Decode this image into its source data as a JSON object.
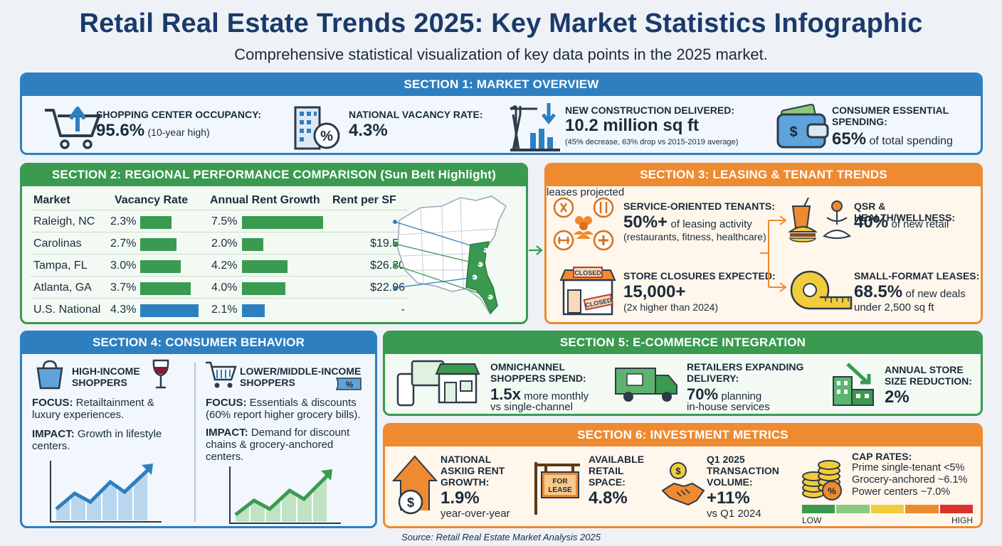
{
  "title": "Retail Real Estate Trends 2025: Key Market Statistics Infographic",
  "subtitle": "Comprehensive statistical visualization of key data points in the 2025 market.",
  "source": "Source: Retail Real Estate Market Analysis 2025",
  "colors": {
    "navy": "#1a3a6b",
    "blue": "#2e7fc0",
    "green": "#3a9a4f",
    "orange": "#ee8a2f"
  },
  "s1": {
    "header": "SECTION 1: MARKET OVERVIEW",
    "occupancy": {
      "label": "SHOPPING CENTER OCCUPANCY:",
      "value": "95.6%",
      "note": "(10-year high)",
      "icon": "cart-up-icon"
    },
    "vacancy": {
      "label": "NATIONAL VACANCY RATE:",
      "value": "4.3%",
      "icon": "building-percent-icon"
    },
    "construction": {
      "label": "NEW CONSTRUCTION DELIVERED:",
      "value": "10.2 million sq ft",
      "note": "(45% decrease, 63% drop vs 2015-2019 average)",
      "icon": "crane-down-icon"
    },
    "spending": {
      "label1": "CONSUMER ESSENTIAL",
      "label2": "SPENDING:",
      "value": "65%",
      "note": "of total spending",
      "icon": "wallet-icon"
    }
  },
  "s2": {
    "header": "SECTION 2: REGIONAL PERFORMANCE COMPARISON (Sun Belt Highlight)",
    "columns": [
      "Market",
      "Vacancy Rate",
      "Annual Rent Growth",
      "Rent per SF"
    ],
    "rows": [
      {
        "market": "Raleigh, NC",
        "vacancy": "2.3%",
        "growth": "7.5%",
        "rent": "-"
      },
      {
        "market": "Carolinas",
        "vacancy": "2.7%",
        "growth": "2.0%",
        "rent": "$19.52"
      },
      {
        "market": "Tampa, FL",
        "vacancy": "3.0%",
        "growth": "4.2%",
        "rent": "$26.30"
      },
      {
        "market": "Atlanta, GA",
        "vacancy": "3.7%",
        "growth": "4.0%",
        "rent": "$22.96"
      },
      {
        "market": "U.S. National",
        "vacancy": "4.3%",
        "growth": "2.1%",
        "rent": "-"
      }
    ]
  },
  "chart_data": {
    "type": "table",
    "columns": [
      "Market",
      "Vacancy Rate",
      "Annual Rent Growth",
      "Rent per SF"
    ],
    "categories": [
      "Raleigh, NC",
      "Carolinas",
      "Tampa, FL",
      "Atlanta, GA",
      "U.S. National"
    ],
    "series": [
      {
        "name": "Vacancy Rate",
        "values": [
          2.3,
          2.7,
          3.0,
          3.7,
          4.3
        ]
      },
      {
        "name": "Annual Rent Growth",
        "values": [
          7.5,
          2.0,
          4.2,
          4.0,
          2.1
        ]
      },
      {
        "name": "Rent per SF",
        "values": [
          null,
          19.52,
          26.3,
          22.96,
          null
        ]
      }
    ]
  },
  "s3": {
    "header": "SECTION 3: LEASING & TENANT TRENDS",
    "service": {
      "label": "SERVICE-ORIENTED TENANTS:",
      "value": "50%+",
      "note1": "of leasing activity",
      "note2": "(restaurants, fitness, healthcare)"
    },
    "closures": {
      "label": "STORE CLOSURES EXPECTED:",
      "value": "15,000+",
      "note": "(2x higher than 2024)",
      "sign1": "CLOSED",
      "sign2": "CLOSED"
    },
    "qsr": {
      "label": "QSR & HEALTH/WELLNESS:",
      "value": "40%",
      "note1": "of new retail",
      "note2": "leases projected"
    },
    "small": {
      "label": "SMALL-FORMAT LEASES:",
      "value": "68.5%",
      "note1": "of new deals",
      "note2": "under 2,500 sq ft"
    }
  },
  "s4": {
    "header": "SECTION 4: CONSUMER BEHAVIOR",
    "high": {
      "title1": "HIGH-INCOME",
      "title2": "SHOPPERS",
      "focus_k": "FOCUS:",
      "focus_v": "Retailtainment & luxury experiences.",
      "impact_k": "IMPACT:",
      "impact_v": "Growth in lifestyle centers."
    },
    "low": {
      "title1": "LOWER/MIDDLE-INCOME",
      "title2": "SHOPPERS",
      "focus_k": "FOCUS:",
      "focus_v": "Essentials & discounts (60% report higher grocery bills).",
      "impact_k": "IMPACT:",
      "impact_v": "Demand for discount chains & grocery-anchored centers.",
      "tag": "%"
    }
  },
  "s5": {
    "header": "SECTION 5: E-COMMERCE INTEGRATION",
    "omni": {
      "label1": "OMNICHANNEL",
      "label2": "SHOPPERS SPEND:",
      "value": "1.5x",
      "note1": "more monthly",
      "note2": "vs single-channel"
    },
    "delivery": {
      "label1": "RETAILERS EXPANDING",
      "label2": "DELIVERY:",
      "value": "70%",
      "note1": "planning",
      "note2": "in-house services"
    },
    "size": {
      "label1": "ANNUAL STORE",
      "label2": "SIZE REDUCTION:",
      "value": "2%"
    }
  },
  "s6": {
    "header": "SECTION 6: INVESTMENT METRICS",
    "rent": {
      "label1": "NATIONAL",
      "label2": "ASKIIG RENT",
      "label3": "GROWTH:",
      "value": "1.9%",
      "note": "year-over-year"
    },
    "space": {
      "label1": "AVAILABLE",
      "label2": "RETAIL",
      "label3": "SPACE:",
      "value": "4.8%",
      "sign1": "FOR",
      "sign2": "LEASE"
    },
    "volume": {
      "label1": "Q1 2025",
      "label2": "TRANSACTION",
      "label3": "VOLUME:",
      "value": "+11%",
      "note": "vs Q1 2024"
    },
    "cap": {
      "label": "CAP RATES:",
      "lines": [
        "Prime single-tenant <5%",
        "Grocery-anchored ~6.1%",
        "Power centers ~7.0%"
      ],
      "low": "LOW",
      "high": "HIGH",
      "scale": [
        "#3a9a4f",
        "#8cc97c",
        "#f3cc3b",
        "#ee8a2f",
        "#d9342b"
      ]
    }
  }
}
